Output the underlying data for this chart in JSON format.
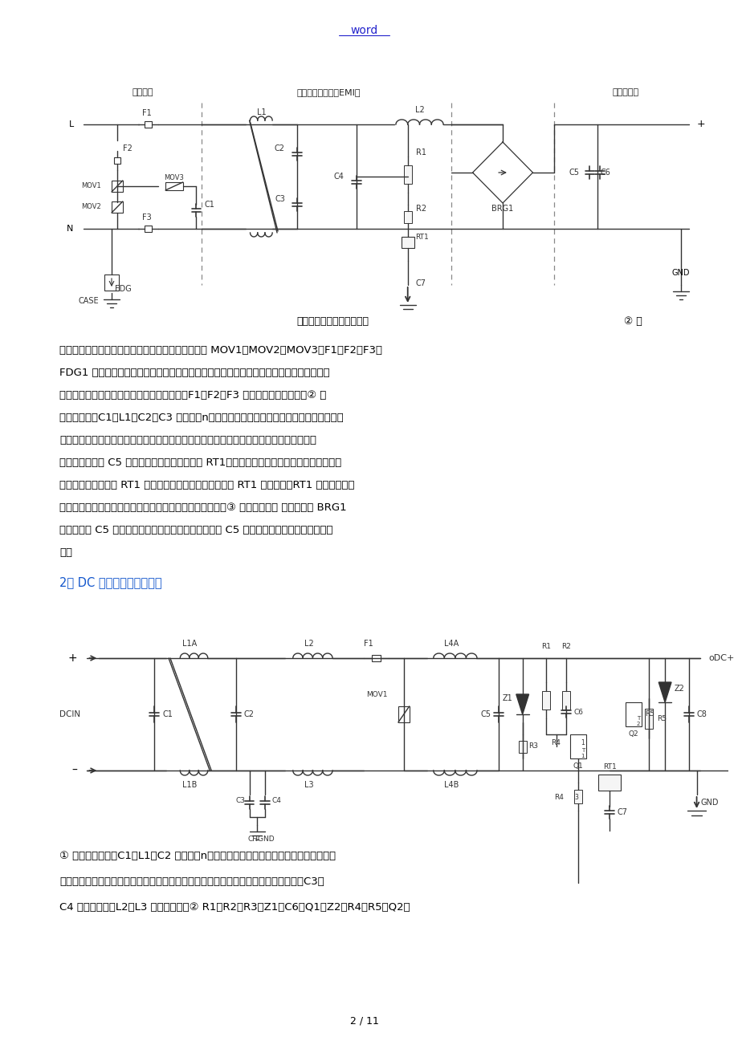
{
  "page_bg": "#ffffff",
  "header_text": "word",
  "header_color": "#2222cc",
  "footer_text": "2 / 11",
  "section2_title": "2、 DC 输入滤波电路原理：",
  "section2_color": "#1155cc",
  "caption1": "输入滤波、整流回路原理图",
  "annot1": "② 防",
  "para1_line1": "雷电路：当有雷击，产生高压经电网导入电源时，由 MOV1、MOV2、MOV3；F1、F2、F3、",
  "para1_line2": "FDG1 组成的电路进行保护。当加在压敏电阙两端的电压超过其工作电压时，其阻值降低，",
  "para1_line3": "使高能量消耗在压敏电阙上，假设电流过大，F1、F2、F3 会烧毁保护后级电路。② 输",
  "para1_line4": "入滤波电路：C1、L1、C2、C3 组成的双n型滤波网络主要是对输入电源的电磁噪声与杂波",
  "para1_line5": "信号进展抑制，防止对电源干扰，同时也防止电源本身产生的高频杂波对电网干扰。当电源",
  "para1_line6": "开启瞬间，要对 C5 充电，由于瞬间电流大，加 RT1（热敏电阙）就能有效的防止浌涌电流。",
  "para1_line7": "因瞬时能量全消耗在 RT1 电阙上，一定时间后温度升高后 RT1 阻值减小（RT1 是负温度系数",
  "para1_line8": "元件），这时它消耗的能量非常小，后级电路可正常工作。③ 整流滤波电路 交流电压经 BRG1",
  "para1_line9": "整流后，经 C5 滤波后得到较为纯净的直流电压。假设 C5 容量变小，输出的交流纹波将增",
  "para1_line10": "大。",
  "para2_line1": "① 输入滤波电路：C1、L1、C2 组成的双n型滤波网络主要是对输入电源的电磁噪声与杂",
  "para2_line2": "波信号进展抑制，防止对电源干扰，同时也防止电源本身产生的高频杂波对电网干扰。C3、",
  "para2_line3": "C4 为安规电容，L2、L3 为差模电感。② R1、R2、R3、Z1、C6、Q1、Z2、R4、R5、Q2、"
}
